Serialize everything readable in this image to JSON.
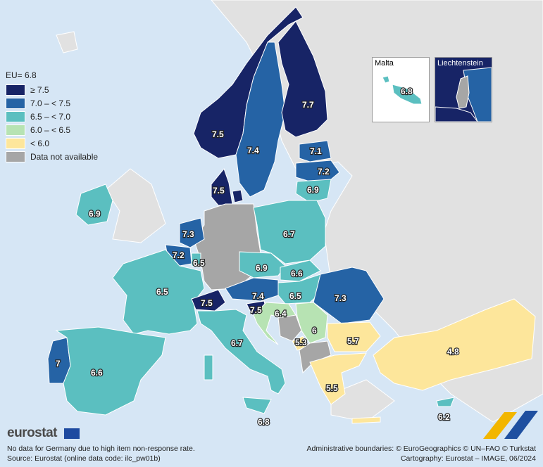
{
  "legend": {
    "title": "EU= 6.8",
    "items": [
      {
        "label": "≥ 7.5",
        "color": "#172466"
      },
      {
        "label": "7.0 – < 7.5",
        "color": "#2563a5"
      },
      {
        "label": "6.5 – < 7.0",
        "color": "#5bbfc0"
      },
      {
        "label": "6.0 – < 6.5",
        "color": "#b7e3b3"
      },
      {
        "label": "< 6.0",
        "color": "#fde69b"
      },
      {
        "label": "Data not available",
        "color": "#a6a6a6"
      }
    ]
  },
  "colors": {
    "sea": "#d6e6f5",
    "non_covered_land": "#e1e1e1",
    "border": "#ffffff"
  },
  "insets": {
    "malta": {
      "label": "Malta",
      "value": "6.8"
    },
    "liechtenstein": {
      "label": "Liechtenstein"
    }
  },
  "values": {
    "norway": "7.5",
    "sweden": "7.4",
    "finland": "7.7",
    "estonia": "7.1",
    "latvia": "7.2",
    "lithuania": "6.9",
    "denmark": "7.5",
    "ireland": "6.9",
    "netherlands": "7.3",
    "belgium": "7.2",
    "luxembourg": "6.5",
    "france": "6.5",
    "switzerland": "7.5",
    "austria": "7.4",
    "slovenia": "7.5",
    "croatia": "6.4",
    "czechia": "6.9",
    "slovakia": "6.6",
    "hungary": "6.5",
    "poland": "6.7",
    "romania": "7.3",
    "serbia": "6",
    "montenegro": "5.3",
    "bulgaria": "5.7",
    "greece": "5.5",
    "turkiye": "4.8",
    "italy": "6.7",
    "malta_main": "6.8",
    "portugal": "7",
    "spain": "6.6",
    "cyprus": "6.2"
  },
  "brand": "eurostat",
  "footer": {
    "note1": "No data for Germany due to high item non-response rate.",
    "note2": "Source: Eurostat (online data code: ilc_pw01b)",
    "credit1": "Administrative boundaries: © EuroGeographics © UN–FAO © Turkstat",
    "credit2": "Cartography: Eurostat – IMAGE, 06/2024"
  }
}
